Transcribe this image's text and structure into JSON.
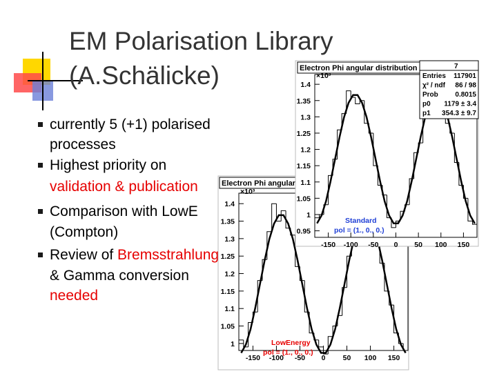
{
  "slide": {
    "title": [
      "EM Polarisation Library",
      "(A.Schälicke)"
    ],
    "bullets": [
      [
        [
          {
            "text": "currently 5 (+1) polarised"
          }
        ],
        [
          {
            "text": "processes"
          }
        ]
      ],
      [
        [
          {
            "text": "Highest priority on"
          }
        ],
        [
          {
            "text": "validation & publication",
            "color": "#e60000"
          }
        ]
      ],
      [
        [
          {
            "text": "Comparison with LowE"
          }
        ],
        [
          {
            "text": "(Compton)"
          }
        ]
      ],
      [
        [
          {
            "text": "Review of "
          },
          {
            "text": "Bremsstrahlung",
            "color": "#e60000"
          }
        ],
        [
          {
            "text": "& Gamma conversion"
          }
        ],
        [
          {
            "text": "needed",
            "color": "#e60000"
          }
        ]
      ]
    ]
  },
  "chart_data": [
    {
      "type": "histogram",
      "title": "Electron Phi angular distribution (deg)",
      "y_multiplier": "×10³",
      "legend": [
        {
          "text": "LowEnergy",
          "color": "#e60000"
        },
        {
          "text": "pol = (1., 0., 0.)",
          "color": "#e60000"
        }
      ],
      "bins": [
        -180,
        -170,
        -160,
        -150,
        -140,
        -130,
        -120,
        -110,
        -100,
        -90,
        -80,
        -70,
        -60,
        -50,
        -40,
        -30,
        -20,
        -10,
        0,
        10,
        20,
        30,
        40,
        50,
        60,
        70,
        80,
        90,
        100,
        110,
        120,
        130,
        140,
        150,
        160,
        170,
        180
      ],
      "counts": [
        1.01,
        0.99,
        1.06,
        1.09,
        1.18,
        1.24,
        1.32,
        1.4,
        1.35,
        1.38,
        1.33,
        1.31,
        1.22,
        1.18,
        1.09,
        1.03,
        1.01,
        0.99,
        0.97,
        1.02,
        1.05,
        1.08,
        1.16,
        1.25,
        1.29,
        1.36,
        1.34,
        1.39,
        1.33,
        1.3,
        1.23,
        1.15,
        1.11,
        1.03,
        1.0,
        0.98
      ],
      "color": "#000000",
      "fit": {
        "x": [
          -175,
          -165,
          -155,
          -145,
          -135,
          -125,
          -115,
          -105,
          -95,
          -85,
          -75,
          -65,
          -55,
          -45,
          -35,
          -25,
          -15,
          -5,
          5,
          15,
          25,
          35,
          45,
          55,
          65,
          75,
          85,
          95,
          105,
          115,
          125,
          135,
          145,
          155,
          165,
          175
        ],
        "values": [
          0.973,
          0.997,
          1.041,
          1.102,
          1.17,
          1.238,
          1.299,
          1.343,
          1.367,
          1.367,
          1.343,
          1.299,
          1.238,
          1.17,
          1.102,
          1.041,
          0.997,
          0.973,
          0.973,
          0.997,
          1.041,
          1.102,
          1.17,
          1.238,
          1.299,
          1.343,
          1.367,
          1.367,
          1.343,
          1.299,
          1.238,
          1.17,
          1.102,
          1.041,
          0.997,
          0.973
        ]
      },
      "xlim": [
        -180,
        180
      ],
      "xticks": [
        -150,
        -100,
        -50,
        0,
        50,
        100,
        150
      ],
      "ylim": [
        0.98,
        1.43
      ],
      "yticks": [
        1,
        1.05,
        1.1,
        1.15,
        1.2,
        1.25,
        1.3,
        1.35,
        1.4
      ]
    },
    {
      "type": "histogram",
      "title": "Electron Phi angular distribution (deg)",
      "y_multiplier": "×10³",
      "stats_name": "7",
      "stats": [
        [
          "Entries",
          "117901"
        ],
        [
          "χ² / ndf",
          "86 / 98"
        ],
        [
          "Prob",
          "0.8015"
        ],
        [
          "p0",
          "1179 ± 3.4"
        ],
        [
          "p1",
          "354.3 ± 9.7"
        ]
      ],
      "legend": [
        {
          "text": "Standard",
          "color": "#1f3fd6"
        },
        {
          "text": "pol = (1., 0., 0.)",
          "color": "#1f3fd6"
        }
      ],
      "bins": [
        -180,
        -170,
        -160,
        -150,
        -140,
        -130,
        -120,
        -110,
        -100,
        -90,
        -80,
        -70,
        -60,
        -50,
        -40,
        -30,
        -20,
        -10,
        0,
        10,
        20,
        30,
        40,
        50,
        60,
        70,
        80,
        90,
        100,
        110,
        120,
        130,
        140,
        150,
        160,
        170,
        180
      ],
      "counts": [
        0.99,
        1.0,
        1.03,
        1.12,
        1.17,
        1.26,
        1.31,
        1.38,
        1.36,
        1.34,
        1.35,
        1.28,
        1.25,
        1.15,
        1.09,
        1.06,
        0.99,
        0.96,
        0.98,
        1.01,
        1.03,
        1.11,
        1.19,
        1.22,
        1.31,
        1.33,
        1.38,
        1.35,
        1.36,
        1.28,
        1.25,
        1.16,
        1.09,
        1.05,
        0.98,
        0.97
      ],
      "color": "#000000",
      "fit": {
        "x": [
          -175,
          -165,
          -155,
          -145,
          -135,
          -125,
          -115,
          -105,
          -95,
          -85,
          -75,
          -65,
          -55,
          -45,
          -35,
          -25,
          -15,
          -5,
          5,
          15,
          25,
          35,
          45,
          55,
          65,
          75,
          85,
          95,
          105,
          115,
          125,
          135,
          145,
          155,
          165,
          175
        ],
        "values": [
          0.973,
          0.997,
          1.041,
          1.102,
          1.17,
          1.238,
          1.299,
          1.343,
          1.367,
          1.367,
          1.343,
          1.299,
          1.238,
          1.17,
          1.102,
          1.041,
          0.997,
          0.973,
          0.973,
          0.997,
          1.041,
          1.102,
          1.17,
          1.238,
          1.299,
          1.343,
          1.367,
          1.367,
          1.343,
          1.299,
          1.238,
          1.17,
          1.102,
          1.041,
          0.997,
          0.973
        ]
      },
      "xlim": [
        -180,
        180
      ],
      "xticks": [
        -150,
        -100,
        -50,
        0,
        50,
        100,
        150
      ],
      "ylim": [
        0.93,
        1.43
      ],
      "yticks": [
        0.95,
        1,
        1.05,
        1.1,
        1.15,
        1.2,
        1.25,
        1.3,
        1.35,
        1.4
      ]
    }
  ]
}
